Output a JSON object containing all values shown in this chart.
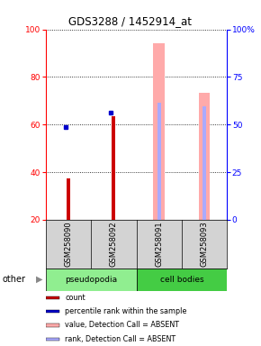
{
  "title": "GDS3288 / 1452914_at",
  "samples": [
    "GSM258090",
    "GSM258092",
    "GSM258091",
    "GSM258093"
  ],
  "groups": [
    "pseudopodia",
    "pseudopodia",
    "cell bodies",
    "cell bodies"
  ],
  "ylim_left": [
    20,
    100
  ],
  "ylim_right": [
    0,
    100
  ],
  "yticks_left": [
    20,
    40,
    60,
    80,
    100
  ],
  "yticks_right": [
    0,
    25,
    50,
    75,
    100
  ],
  "ytick_labels_right": [
    "0",
    "25",
    "50",
    "75",
    "100%"
  ],
  "count_values": [
    37.5,
    63.5,
    null,
    null
  ],
  "count_color": "#cc0000",
  "percentile_values": [
    59,
    65,
    null,
    null
  ],
  "percentile_color": "#0000cc",
  "absent_value_bars": [
    null,
    null,
    94,
    73.5
  ],
  "absent_value_color": "#ffaaaa",
  "absent_rank_bars": [
    null,
    null,
    69,
    67.5
  ],
  "absent_rank_color": "#aaaaff",
  "legend_items": [
    {
      "color": "#cc0000",
      "label": "count"
    },
    {
      "color": "#0000cc",
      "label": "percentile rank within the sample"
    },
    {
      "color": "#ffaaaa",
      "label": "value, Detection Call = ABSENT"
    },
    {
      "color": "#aaaaff",
      "label": "rank, Detection Call = ABSENT"
    }
  ],
  "group_label": "other",
  "dotgrid_y": [
    20,
    40,
    60,
    80,
    100
  ],
  "label_area_color": "#d3d3d3",
  "pseudopodia_color": "#90ee90",
  "cell_bodies_color": "#44cc44",
  "absent_bar_width": 0.25,
  "rank_bar_width": 0.08,
  "count_bar_width": 0.08
}
